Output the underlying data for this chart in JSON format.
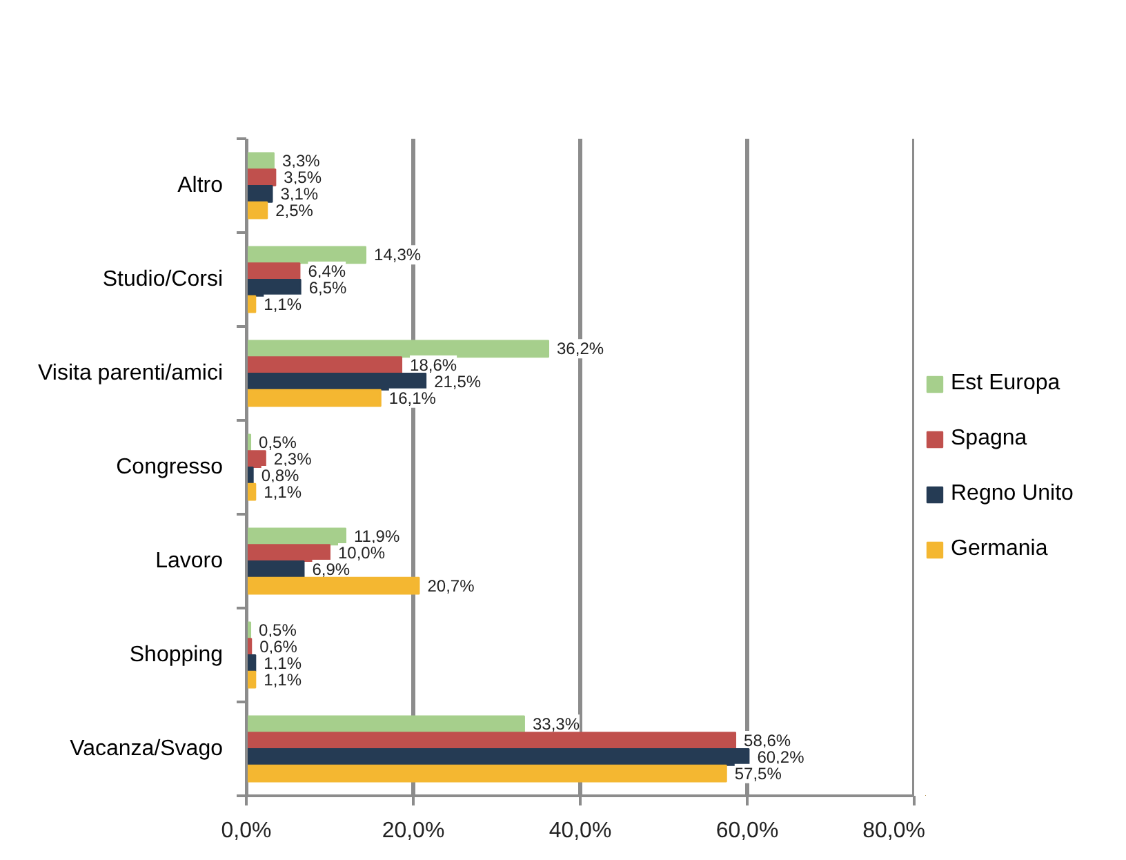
{
  "chart_data": {
    "type": "bar",
    "orientation": "horizontal",
    "categories": [
      "Altro",
      "Studio/Corsi",
      "Visita parenti/amici",
      "Congresso",
      "Lavoro",
      "Shopping",
      "Vacanza/Svago"
    ],
    "series": [
      {
        "name": "Est Europa",
        "color": "#a6cf8c",
        "values": [
          3.3,
          14.3,
          36.2,
          0.5,
          11.9,
          0.5,
          33.3
        ],
        "value_labels": [
          "3,3%",
          "14,3%",
          "36,2%",
          "0,5%",
          "11,9%",
          "0,5%",
          "33,3%"
        ]
      },
      {
        "name": "Spagna",
        "color": "#c0504d",
        "values": [
          3.5,
          6.4,
          18.6,
          2.3,
          10.0,
          0.6,
          58.6
        ],
        "value_labels": [
          "3,5%",
          "6,4%",
          "18,6%",
          "2,3%",
          "10,0%",
          "0,6%",
          "58,6%"
        ]
      },
      {
        "name": "Regno Unito",
        "color": "#253b54",
        "values": [
          3.1,
          6.5,
          21.5,
          0.8,
          6.9,
          1.1,
          60.2
        ],
        "value_labels": [
          "3,1%",
          "6,5%",
          "21,5%",
          "0,8%",
          "6,9%",
          "1,1%",
          "60,2%"
        ]
      },
      {
        "name": "Germania",
        "color": "#f4b731",
        "values": [
          2.5,
          1.1,
          16.1,
          1.1,
          20.7,
          1.1,
          57.5
        ],
        "value_labels": [
          "2,5%",
          "1,1%",
          "16,1%",
          "1,1%",
          "20,7%",
          "1,1%",
          "57,5%"
        ]
      }
    ],
    "xlim": [
      0,
      80
    ],
    "xticks": [
      {
        "value": 0,
        "label": "0,0%"
      },
      {
        "value": 20,
        "label": "20,0%"
      },
      {
        "value": 40,
        "label": "40,0%"
      },
      {
        "value": 60,
        "label": "60,0%"
      },
      {
        "value": 80,
        "label": "80,0%"
      }
    ],
    "grid": "x",
    "legend": "right"
  }
}
